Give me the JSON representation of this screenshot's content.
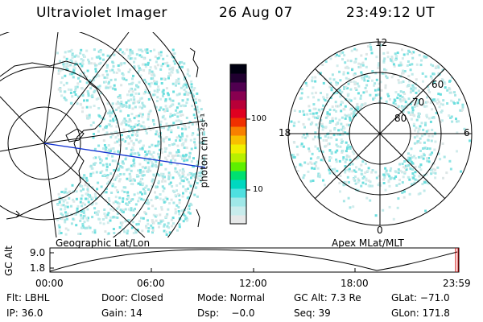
{
  "header": {
    "instrument": "Ultraviolet Imager",
    "date": "26 Aug 07",
    "time": "23:49:12 UT"
  },
  "geo_panel": {
    "label": "Geographic Lat/Lon"
  },
  "apex_panel": {
    "label": "Apex MLat/MLT",
    "mlt_labels": [
      "12",
      "18",
      "6",
      "0"
    ],
    "mlat_labels": [
      "60",
      "70",
      "80"
    ]
  },
  "colorbar": {
    "label": "photon cm⁻²s⁻¹",
    "ticks": [
      "100",
      "10"
    ],
    "colors": [
      "#e6e8e8",
      "#c8ecec",
      "#9fe8e8",
      "#4fe0e0",
      "#00d8c0",
      "#00e070",
      "#5ef000",
      "#b8f000",
      "#f0f000",
      "#f8c000",
      "#f88000",
      "#f03000",
      "#e00020",
      "#b80038",
      "#880050",
      "#500050",
      "#200030",
      "#000010"
    ]
  },
  "altitude_plot": {
    "ylabel": "GC Alt",
    "ytick_top": "9.0",
    "ytick_bottom": "1.8",
    "xticks": [
      "00:00",
      "06:00",
      "12:00",
      "18:00",
      "23:59"
    ]
  },
  "info": {
    "filter": "Flt: LBHL",
    "door": "Door: Closed",
    "mode": "Mode: Normal",
    "gc_alt": "GC Alt: 7.3 Re",
    "glat": "GLat: −71.0",
    "ip": "IP: 36.0",
    "gain": "Gain: 14",
    "dsp": "Dsp:    −0.0",
    "seq": "Seq: 39",
    "glon": "GLon: 171.8"
  }
}
